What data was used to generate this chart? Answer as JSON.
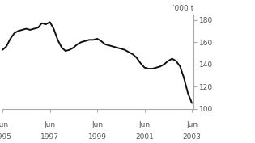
{
  "title": "",
  "ylabel": "'000 t",
  "ylim": [
    100,
    185
  ],
  "yticks": [
    100,
    120,
    140,
    160,
    180
  ],
  "xlim_start": 1995.42,
  "xlim_end": 2003.5,
  "xtick_positions": [
    1995.42,
    1997.42,
    1999.42,
    2001.42,
    2003.42
  ],
  "xtick_label_top": [
    "Jun",
    "Jun",
    "Jun",
    "Jun",
    "Jun"
  ],
  "xtick_label_bot": [
    "1995",
    "1997",
    "1999",
    "2001",
    "2003"
  ],
  "line_color": "#111111",
  "line_width": 1.4,
  "background_color": "#ffffff",
  "spine_color": "#aaaaaa",
  "tick_color": "#aaaaaa",
  "label_color": "#555555",
  "x": [
    1995.42,
    1995.58,
    1995.75,
    1995.92,
    1996.08,
    1996.25,
    1996.42,
    1996.58,
    1996.75,
    1996.92,
    1997.08,
    1997.25,
    1997.42,
    1997.58,
    1997.75,
    1997.92,
    1998.08,
    1998.25,
    1998.42,
    1998.58,
    1998.75,
    1998.92,
    1999.08,
    1999.25,
    1999.42,
    1999.58,
    1999.75,
    1999.92,
    2000.08,
    2000.25,
    2000.42,
    2000.58,
    2000.75,
    2000.92,
    2001.08,
    2001.25,
    2001.42,
    2001.58,
    2001.75,
    2001.92,
    2002.08,
    2002.25,
    2002.42,
    2002.58,
    2002.75,
    2002.92,
    2003.08,
    2003.25,
    2003.42
  ],
  "y": [
    153,
    156,
    163,
    168,
    170,
    171,
    172,
    171,
    172,
    173,
    177,
    176,
    178,
    172,
    162,
    155,
    152,
    153,
    155,
    158,
    160,
    161,
    162,
    162,
    163,
    161,
    158,
    157,
    156,
    155,
    154,
    153,
    151,
    149,
    146,
    141,
    137,
    136,
    136,
    137,
    138,
    140,
    143,
    145,
    143,
    138,
    128,
    114,
    105
  ]
}
